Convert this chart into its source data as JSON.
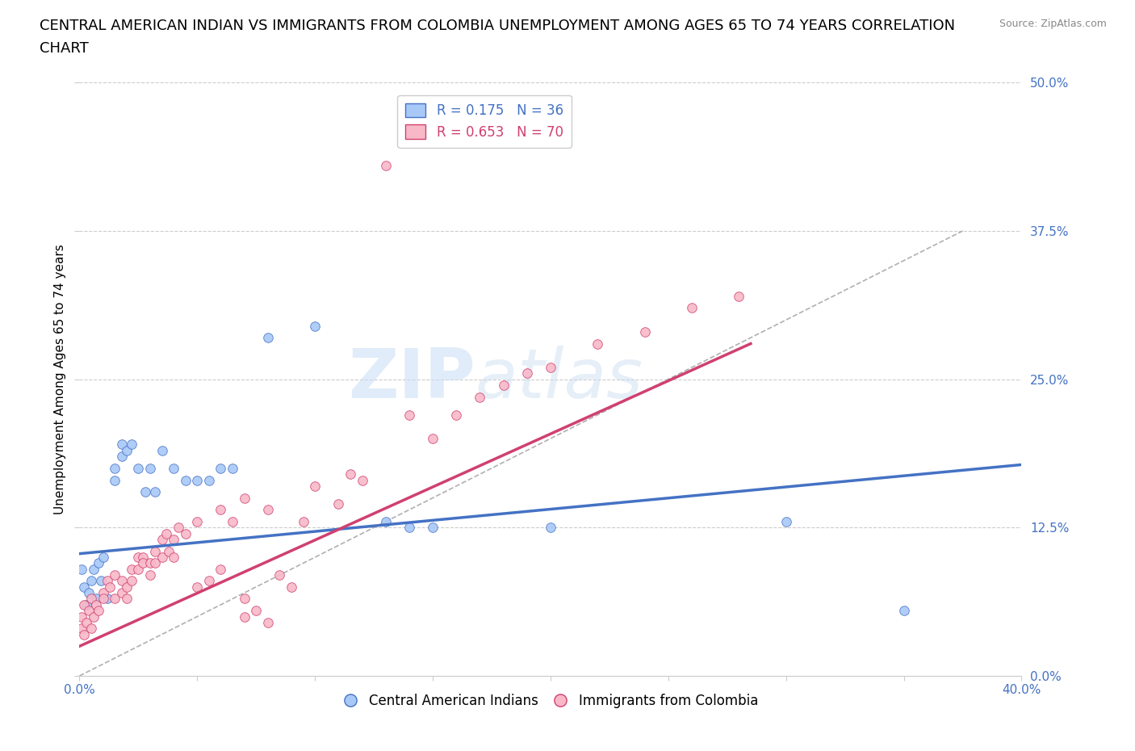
{
  "title_line1": "CENTRAL AMERICAN INDIAN VS IMMIGRANTS FROM COLOMBIA UNEMPLOYMENT AMONG AGES 65 TO 74 YEARS CORRELATION",
  "title_line2": "CHART",
  "source": "Source: ZipAtlas.com",
  "ylabel": "Unemployment Among Ages 65 to 74 years",
  "xlim": [
    0.0,
    0.4
  ],
  "ylim": [
    0.0,
    0.5
  ],
  "xticks": [
    0.0,
    0.05,
    0.1,
    0.15,
    0.2,
    0.25,
    0.3,
    0.35,
    0.4
  ],
  "yticks": [
    0.0,
    0.125,
    0.25,
    0.375,
    0.5
  ],
  "yticklabels": [
    "0.0%",
    "12.5%",
    "25.0%",
    "37.5%",
    "50.0%"
  ],
  "xticklabels": [
    "0.0%",
    "",
    "",
    "",
    "",
    "",
    "",
    "",
    "40.0%"
  ],
  "background_color": "#ffffff",
  "grid_color": "#cccccc",
  "watermark_zip": "ZIP",
  "watermark_atlas": "atlas",
  "blue_scatter": [
    [
      0.001,
      0.09
    ],
    [
      0.002,
      0.075
    ],
    [
      0.003,
      0.06
    ],
    [
      0.004,
      0.07
    ],
    [
      0.005,
      0.08
    ],
    [
      0.006,
      0.09
    ],
    [
      0.007,
      0.065
    ],
    [
      0.008,
      0.095
    ],
    [
      0.009,
      0.08
    ],
    [
      0.01,
      0.1
    ],
    [
      0.012,
      0.065
    ],
    [
      0.015,
      0.175
    ],
    [
      0.015,
      0.165
    ],
    [
      0.018,
      0.195
    ],
    [
      0.018,
      0.185
    ],
    [
      0.02,
      0.19
    ],
    [
      0.022,
      0.195
    ],
    [
      0.025,
      0.175
    ],
    [
      0.028,
      0.155
    ],
    [
      0.03,
      0.175
    ],
    [
      0.032,
      0.155
    ],
    [
      0.035,
      0.19
    ],
    [
      0.04,
      0.175
    ],
    [
      0.045,
      0.165
    ],
    [
      0.05,
      0.165
    ],
    [
      0.055,
      0.165
    ],
    [
      0.06,
      0.175
    ],
    [
      0.065,
      0.175
    ],
    [
      0.08,
      0.285
    ],
    [
      0.1,
      0.295
    ],
    [
      0.13,
      0.13
    ],
    [
      0.15,
      0.125
    ],
    [
      0.2,
      0.125
    ],
    [
      0.3,
      0.13
    ],
    [
      0.35,
      0.055
    ],
    [
      0.14,
      0.125
    ]
  ],
  "pink_scatter": [
    [
      0.001,
      0.04
    ],
    [
      0.001,
      0.05
    ],
    [
      0.002,
      0.035
    ],
    [
      0.002,
      0.06
    ],
    [
      0.003,
      0.045
    ],
    [
      0.004,
      0.055
    ],
    [
      0.005,
      0.04
    ],
    [
      0.005,
      0.065
    ],
    [
      0.006,
      0.05
    ],
    [
      0.007,
      0.06
    ],
    [
      0.008,
      0.055
    ],
    [
      0.01,
      0.07
    ],
    [
      0.01,
      0.065
    ],
    [
      0.012,
      0.08
    ],
    [
      0.013,
      0.075
    ],
    [
      0.015,
      0.065
    ],
    [
      0.015,
      0.085
    ],
    [
      0.018,
      0.07
    ],
    [
      0.018,
      0.08
    ],
    [
      0.02,
      0.065
    ],
    [
      0.02,
      0.075
    ],
    [
      0.022,
      0.09
    ],
    [
      0.022,
      0.08
    ],
    [
      0.025,
      0.1
    ],
    [
      0.025,
      0.09
    ],
    [
      0.027,
      0.1
    ],
    [
      0.027,
      0.095
    ],
    [
      0.03,
      0.085
    ],
    [
      0.03,
      0.095
    ],
    [
      0.032,
      0.105
    ],
    [
      0.032,
      0.095
    ],
    [
      0.035,
      0.1
    ],
    [
      0.035,
      0.115
    ],
    [
      0.037,
      0.12
    ],
    [
      0.038,
      0.105
    ],
    [
      0.04,
      0.1
    ],
    [
      0.04,
      0.115
    ],
    [
      0.042,
      0.125
    ],
    [
      0.045,
      0.12
    ],
    [
      0.05,
      0.13
    ],
    [
      0.05,
      0.075
    ],
    [
      0.055,
      0.08
    ],
    [
      0.06,
      0.09
    ],
    [
      0.06,
      0.14
    ],
    [
      0.065,
      0.13
    ],
    [
      0.07,
      0.05
    ],
    [
      0.07,
      0.065
    ],
    [
      0.07,
      0.15
    ],
    [
      0.075,
      0.055
    ],
    [
      0.08,
      0.045
    ],
    [
      0.08,
      0.14
    ],
    [
      0.085,
      0.085
    ],
    [
      0.09,
      0.075
    ],
    [
      0.095,
      0.13
    ],
    [
      0.1,
      0.16
    ],
    [
      0.11,
      0.145
    ],
    [
      0.115,
      0.17
    ],
    [
      0.12,
      0.165
    ],
    [
      0.13,
      0.43
    ],
    [
      0.14,
      0.22
    ],
    [
      0.15,
      0.2
    ],
    [
      0.16,
      0.22
    ],
    [
      0.17,
      0.235
    ],
    [
      0.18,
      0.245
    ],
    [
      0.19,
      0.255
    ],
    [
      0.2,
      0.26
    ],
    [
      0.22,
      0.28
    ],
    [
      0.24,
      0.29
    ],
    [
      0.26,
      0.31
    ],
    [
      0.28,
      0.32
    ]
  ],
  "blue_R": 0.175,
  "blue_N": 36,
  "pink_R": 0.653,
  "pink_N": 70,
  "blue_color": "#a8c8f8",
  "pink_color": "#f8b8c8",
  "blue_line_color": "#4472c4",
  "pink_line_color": "#d04070",
  "dashed_line_color": "#b0b0b0",
  "title_fontsize": 13,
  "axis_label_fontsize": 11,
  "tick_fontsize": 11,
  "legend_fontsize": 12
}
